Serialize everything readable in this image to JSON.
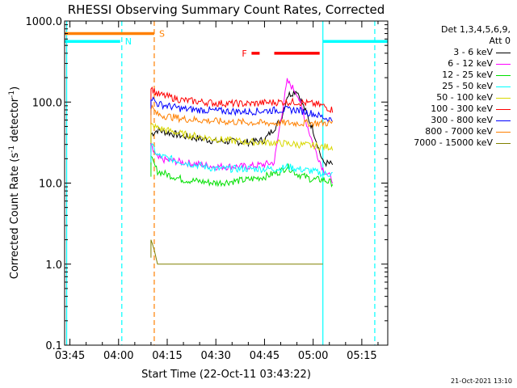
{
  "chart_data": {
    "type": "line",
    "title": "RHESSI Observing Summary Count Rates, Corrected",
    "xlabel": "Start Time (22-Oct-11 03:43:22)",
    "ylabel": "Corrected Count Rate (s⁻¹ detector⁻¹)",
    "ylabel_parts": {
      "main": "Corrected Count Rate (s",
      "exp1": "-1",
      "mid": " detector",
      "exp2": "-1",
      "end": ")"
    },
    "xlim": [
      "03:43:22",
      "05:23:00"
    ],
    "ylim": [
      0.1,
      1000
    ],
    "yscale": "log",
    "x_ticks": [
      "03:45",
      "04:00",
      "04:15",
      "04:30",
      "04:45",
      "05:00",
      "05:15"
    ],
    "y_ticks": [
      "0.1",
      "1.0",
      "10.0",
      "100.0",
      "1000.0"
    ],
    "legend_header": [
      "Det 1,3,4,5,6,9,",
      "Att 0"
    ],
    "legend_placement": "right",
    "series": [
      {
        "name": "3 - 6 keV",
        "color": "#000000",
        "x": [
          "04:10",
          "04:12",
          "04:20",
          "04:30",
          "04:40",
          "04:45",
          "04:50",
          "04:52",
          "04:55",
          "05:00",
          "05:03",
          "05:06"
        ],
        "y": [
          40,
          45,
          38,
          33,
          32,
          34,
          60,
          120,
          140,
          45,
          18,
          17
        ]
      },
      {
        "name": "6 - 12 keV",
        "color": "#ff00ff",
        "x": [
          "04:10",
          "04:12",
          "04:20",
          "04:30",
          "04:40",
          "04:45",
          "04:48",
          "04:50",
          "04:52",
          "04:55",
          "05:00",
          "05:03",
          "05:06"
        ],
        "y": [
          28,
          20,
          18,
          16,
          16,
          17,
          18,
          60,
          180,
          130,
          30,
          15,
          11
        ]
      },
      {
        "name": "12 - 25 keV",
        "color": "#00e000",
        "x": [
          "04:10",
          "04:12",
          "04:20",
          "04:30",
          "04:40",
          "04:45",
          "04:50",
          "04:52",
          "04:55",
          "05:00",
          "05:03",
          "05:06"
        ],
        "y": [
          20,
          14,
          11,
          10,
          11,
          12,
          14,
          16,
          13,
          11,
          11,
          10
        ]
      },
      {
        "name": "25 - 50 keV",
        "color": "#00ffff",
        "x": [
          "04:10",
          "04:12",
          "04:20",
          "04:30",
          "04:40",
          "04:45",
          "04:50",
          "04:52",
          "04:55",
          "05:00",
          "05:03",
          "05:06"
        ],
        "y": [
          30,
          22,
          18,
          15,
          15,
          15,
          15,
          16,
          15,
          14,
          13,
          13
        ]
      },
      {
        "name": "50 - 100 keV",
        "color": "#d8d800",
        "x": [
          "04:10",
          "04:12",
          "04:20",
          "04:30",
          "04:40",
          "04:45",
          "04:50",
          "04:55",
          "05:00",
          "05:03",
          "05:06"
        ],
        "y": [
          52,
          48,
          40,
          35,
          32,
          32,
          31,
          30,
          29,
          28,
          28
        ]
      },
      {
        "name": "100 - 300 keV",
        "color": "#ff0000",
        "x": [
          "04:10",
          "04:12",
          "04:20",
          "04:30",
          "04:40",
          "04:45",
          "04:50",
          "04:55",
          "05:00",
          "05:03",
          "05:06"
        ],
        "y": [
          150,
          125,
          105,
          97,
          95,
          98,
          100,
          100,
          95,
          90,
          80
        ]
      },
      {
        "name": "300 - 800 keV",
        "color": "#0000ff",
        "x": [
          "04:10",
          "04:12",
          "04:20",
          "04:30",
          "04:40",
          "04:45",
          "04:50",
          "04:55",
          "05:00",
          "05:03",
          "05:06"
        ],
        "y": [
          115,
          95,
          82,
          78,
          76,
          78,
          80,
          80,
          72,
          65,
          60
        ]
      },
      {
        "name": "800 - 7000 keV",
        "color": "#ff8000",
        "x": [
          "04:10",
          "04:12",
          "04:20",
          "04:30",
          "04:40",
          "04:45",
          "04:50",
          "04:55",
          "05:00",
          "05:03",
          "05:06"
        ],
        "y": [
          88,
          70,
          62,
          58,
          56,
          55,
          55,
          55,
          55,
          55,
          55
        ]
      },
      {
        "name": "7000 - 15000 keV",
        "color": "#808000",
        "x": [
          "04:10",
          "04:11",
          "04:12",
          "04:15",
          "04:20",
          "04:30",
          "04:40",
          "04:45",
          "04:50",
          "04:55",
          "05:00",
          "05:03"
        ],
        "y": [
          2.0,
          1.5,
          1.0,
          1.0,
          1.0,
          1.0,
          1.0,
          1.0,
          1.0,
          1.0,
          1.0,
          1.0
        ]
      }
    ],
    "state_bars": [
      {
        "label": "N",
        "color": "#00ffff",
        "intervals": [
          [
            "03:43:22",
            "04:00:30"
          ],
          [
            "05:03:00",
            "05:23:00"
          ]
        ],
        "level": 560
      },
      {
        "label": "S",
        "color": "#ff8000",
        "intervals": [
          [
            "03:43:22",
            "04:11:00"
          ]
        ],
        "level": 700
      },
      {
        "label": "F",
        "color": "#ff0000",
        "intervals": [
          [
            "04:41:00",
            "04:43:30"
          ],
          [
            "04:48:00",
            "05:02:00"
          ]
        ],
        "level": 400
      }
    ],
    "vertical_markers": [
      {
        "x": "03:44",
        "color": "#00ffff",
        "style": "solid"
      },
      {
        "x": "04:01",
        "color": "#00ffff",
        "style": "dashed"
      },
      {
        "x": "04:11",
        "color": "#ff8000",
        "style": "dashed"
      },
      {
        "x": "05:03",
        "color": "#00ffff",
        "style": "solid"
      },
      {
        "x": "05:19",
        "color": "#00ffff",
        "style": "dashed"
      }
    ]
  },
  "footer": {
    "stamp": "21-Oct-2021 13:10"
  }
}
